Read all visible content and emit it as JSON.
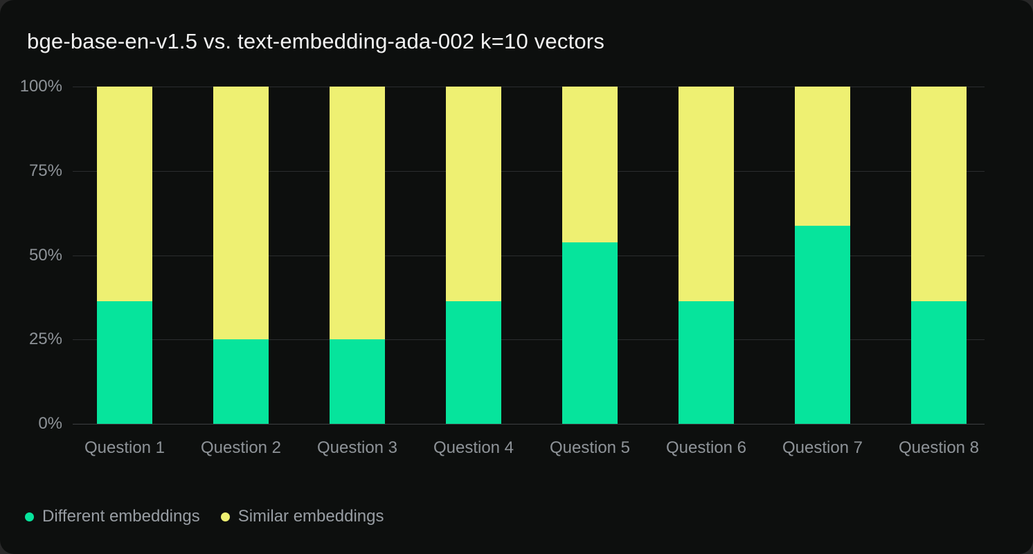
{
  "title": "bge-base-en-v1.5 vs. text-embedding-ada-002 k=10 vectors",
  "colors": {
    "page_bg": "#282828",
    "card_bg": "#0d0f0e",
    "title_color": "#f2f2f2",
    "axis_text": "#8e9398",
    "legend_text": "#989da3",
    "gridline": "#2b2d2f",
    "baseline": "#3d4042",
    "different_embeddings": "#06e49c",
    "similar_embeddings": "#eef072"
  },
  "chart_data": {
    "type": "bar",
    "stacked": true,
    "title": "bge-base-en-v1.5 vs. text-embedding-ada-002 k=10 vectors",
    "categories": [
      "Question 1",
      "Question 2",
      "Question 3",
      "Question 4",
      "Question 5",
      "Question 6",
      "Question 7",
      "Question 8"
    ],
    "series": [
      {
        "name": "Different embeddings",
        "color": "#06e49c",
        "values": [
          36.3,
          25.0,
          25.0,
          36.3,
          53.8,
          36.3,
          58.8,
          36.3
        ]
      },
      {
        "name": "Similar embeddings",
        "color": "#eef072",
        "values": [
          63.7,
          75.0,
          75.0,
          63.7,
          46.2,
          63.7,
          41.2,
          63.7
        ]
      }
    ],
    "xlabel": "",
    "ylabel": "",
    "y_axis": {
      "unit": "%",
      "min": 0,
      "max": 100,
      "ticks": [
        "0%",
        "25%",
        "50%",
        "75%",
        "100%"
      ]
    },
    "ylim": [
      0,
      100
    ],
    "grid": true,
    "legend_position": "bottom-left"
  }
}
